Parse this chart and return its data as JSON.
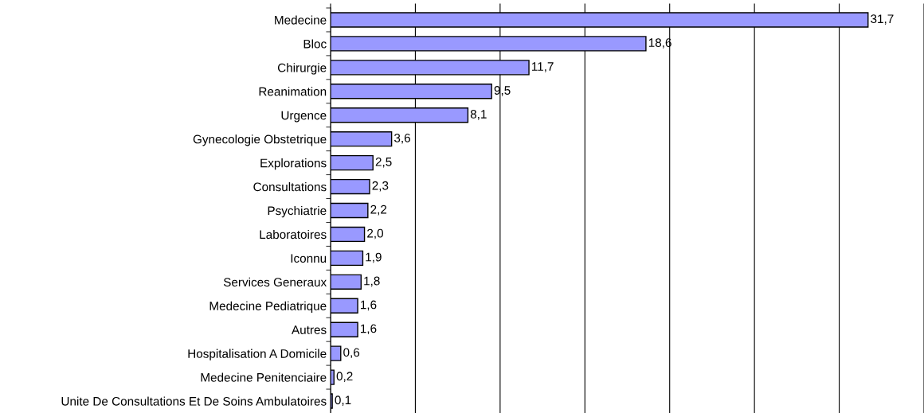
{
  "chart_data": {
    "type": "bar",
    "orientation": "horizontal",
    "categories": [
      "Medecine",
      "Bloc",
      "Chirurgie",
      "Reanimation",
      "Urgence",
      "Gynecologie Obstetrique",
      "Explorations",
      "Consultations",
      "Psychiatrie",
      "Laboratoires",
      "Iconnu",
      "Services Generaux",
      "Medecine Pediatrique",
      "Autres",
      "Hospitalisation A Domicile",
      "Medecine Penitenciaire",
      "Unite De Consultations Et De Soins Ambulatoires"
    ],
    "values": [
      31.7,
      18.6,
      11.7,
      9.5,
      8.1,
      3.6,
      2.5,
      2.3,
      2.2,
      2.0,
      1.9,
      1.8,
      1.6,
      1.6,
      0.6,
      0.2,
      0.1
    ],
    "value_labels": [
      "31,7",
      "18,6",
      "11,7",
      "9,5",
      "8,1",
      "3,6",
      "2,5",
      "2,3",
      "2,2",
      "2,0",
      "1,9",
      "1,8",
      "1,6",
      "1,6",
      "0,6",
      "0,2",
      "0,1"
    ],
    "color": "#9999ff",
    "xlim": [
      0,
      35
    ],
    "xticks": [
      {
        "value": 0,
        "label": null
      },
      {
        "value": 5,
        "label": null
      },
      {
        "value": 10,
        "label": null
      },
      {
        "value": 15,
        "label": null
      },
      {
        "value": 20,
        "label": null
      },
      {
        "value": 25,
        "label": null
      },
      {
        "value": 30,
        "label": null
      },
      {
        "value": 35,
        "label": null
      }
    ],
    "tick_labels": "y",
    "grid": "x",
    "legend": false
  }
}
